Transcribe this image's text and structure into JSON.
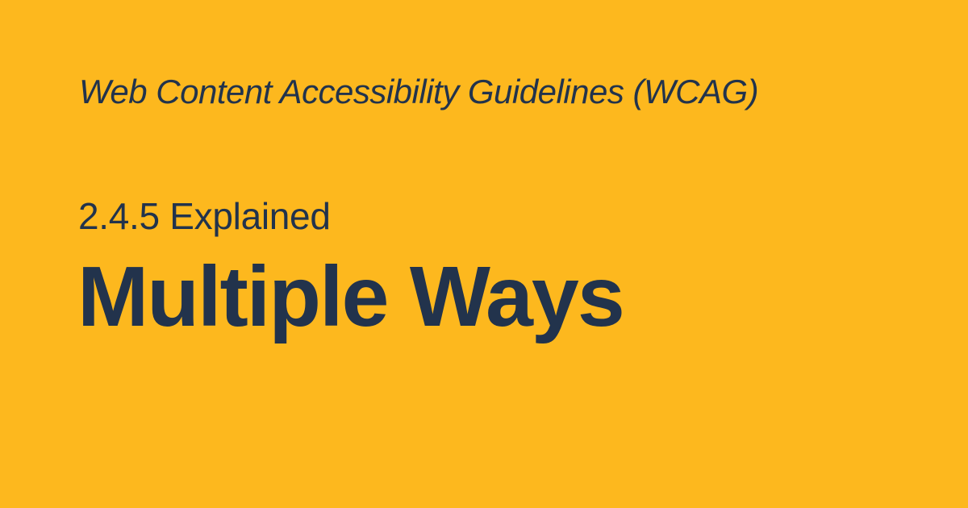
{
  "card": {
    "supertitle": "Web Content Accessibility Guidelines (WCAG)",
    "subtitle": "2.4.5 Explained",
    "title": "Multiple Ways"
  },
  "colors": {
    "background": "#FDB81E",
    "text": "#22334C"
  }
}
